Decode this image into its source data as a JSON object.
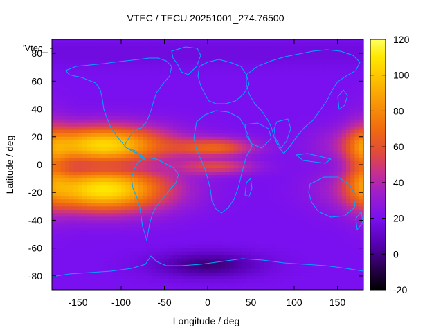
{
  "title": "VTEC / TECU 20251001_274.76500",
  "legend_key": "'Vtec_",
  "map": {
    "type": "heatmap",
    "x_axis": {
      "label": "Longitude / deg",
      "range": [
        -180,
        180
      ],
      "ticks": [
        "-150",
        "-100",
        "-50",
        "0",
        "50",
        "100",
        "150"
      ]
    },
    "y_axis": {
      "label": "Latitude / deg",
      "range": [
        -90,
        90
      ],
      "ticks": [
        "80",
        "60",
        "40",
        "20",
        "0",
        "-20",
        "-40",
        "-60",
        "-80"
      ]
    },
    "colorbar": {
      "range": [
        -20,
        120
      ],
      "ticks": [
        "120",
        "100",
        "80",
        "60",
        "40",
        "20",
        "0",
        "-20"
      ],
      "palette": [
        "#000000",
        "#2a0050",
        "#5500b0",
        "#7a10f0",
        "#a020c8",
        "#c8308c",
        "#e04a3c",
        "#f06a10",
        "#f89408",
        "#fcc000",
        "#ffe800",
        "#ffff60"
      ]
    },
    "features": {
      "equatorial_anomaly_center_lon": -90,
      "background_level_tecu": 20,
      "peak_level_tecu": 110,
      "coastline_color": "#00a8ff"
    }
  }
}
